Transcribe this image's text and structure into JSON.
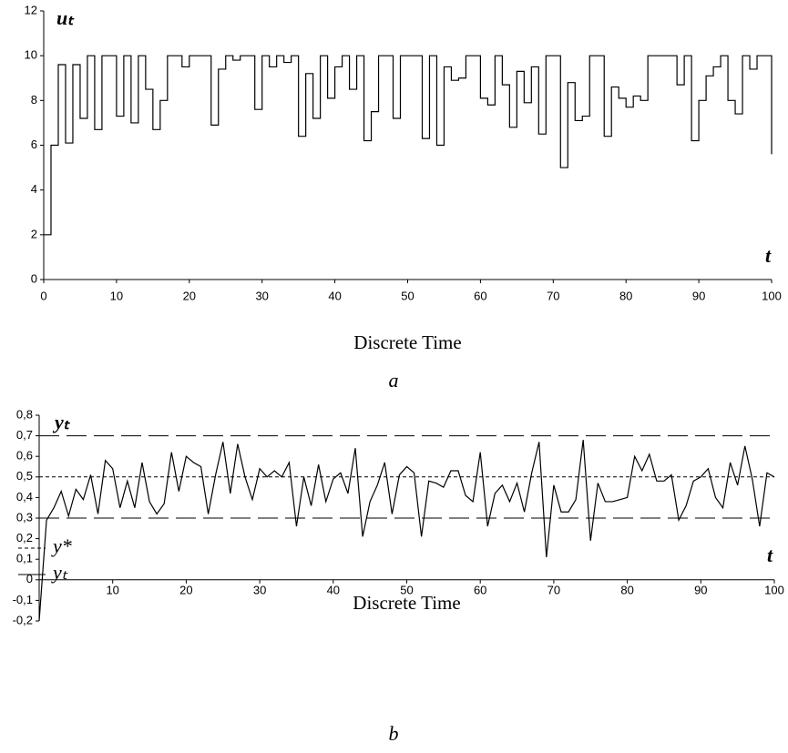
{
  "chart_data": [
    {
      "type": "step",
      "xlabel": "Discrete Time",
      "caption": "a",
      "annotations": {
        "y": "uₜ",
        "x": "t"
      },
      "xlim": [
        0,
        100
      ],
      "xticks": [
        0,
        10,
        20,
        30,
        40,
        50,
        60,
        70,
        80,
        90,
        100
      ],
      "ylim": [
        0,
        12
      ],
      "yticks": [
        0,
        2,
        4,
        6,
        8,
        10,
        12
      ],
      "series": [
        {
          "color": "#000000",
          "x": [
            0,
            1,
            2,
            3,
            4,
            5,
            6,
            7,
            8,
            9,
            10,
            11,
            12,
            13,
            14,
            15,
            16,
            17,
            18,
            19,
            20,
            21,
            22,
            23,
            24,
            25,
            26,
            27,
            28,
            29,
            30,
            31,
            32,
            33,
            34,
            35,
            36,
            37,
            38,
            39,
            40,
            41,
            42,
            43,
            44,
            45,
            46,
            47,
            48,
            49,
            50,
            51,
            52,
            53,
            54,
            55,
            56,
            57,
            58,
            59,
            60,
            61,
            62,
            63,
            64,
            65,
            66,
            67,
            68,
            69,
            70,
            71,
            72,
            73,
            74,
            75,
            76,
            77,
            78,
            79,
            80,
            81,
            82,
            83,
            84,
            85,
            86,
            87,
            88,
            89,
            90,
            91,
            92,
            93,
            94,
            95,
            96,
            97,
            98,
            99,
            100
          ],
          "values": [
            2,
            6,
            9.6,
            6.1,
            9.6,
            7.2,
            10,
            6.7,
            10,
            10,
            7.3,
            10,
            7,
            10,
            8.5,
            6.7,
            8,
            10,
            10,
            9.5,
            10,
            10,
            10,
            6.9,
            9.4,
            10,
            9.8,
            10,
            10,
            7.6,
            10,
            9.5,
            10,
            9.7,
            10,
            6.4,
            9.2,
            7.2,
            10,
            8.1,
            9.5,
            10,
            8.5,
            10,
            6.2,
            7.5,
            10,
            10,
            7.2,
            10,
            10,
            10,
            6.3,
            10,
            6,
            9.5,
            8.9,
            9,
            10,
            10,
            8.1,
            7.8,
            10,
            8.7,
            6.8,
            9.3,
            7.9,
            9.5,
            6.5,
            10,
            10,
            5,
            8.8,
            7.1,
            7.3,
            10,
            10,
            6.4,
            8.6,
            8.1,
            7.7,
            8.2,
            8,
            10,
            10,
            10,
            10,
            8.7,
            10,
            6.2,
            8,
            9.1,
            9.5,
            10,
            8,
            7.4,
            10,
            9.4,
            10,
            10,
            5.6
          ]
        }
      ]
    },
    {
      "type": "line",
      "xlabel": "Discrete Time",
      "caption": "b",
      "annotations": {
        "y": "yₜ",
        "x": "t"
      },
      "xlim": [
        0,
        100
      ],
      "xticks": [
        10,
        20,
        30,
        40,
        50,
        60,
        70,
        80,
        90,
        100
      ],
      "ylim": [
        -0.2,
        0.8
      ],
      "yticks": [
        {
          "value": -0.2,
          "label": "-0,2"
        },
        {
          "value": -0.1,
          "label": "-0,1"
        },
        0,
        {
          "value": 0.1,
          "label": "0,1"
        },
        {
          "value": 0.2,
          "label": "0,2"
        },
        {
          "value": 0.3,
          "label": "0,3"
        },
        {
          "value": 0.4,
          "label": "0,4"
        },
        {
          "value": 0.5,
          "label": "0,5"
        },
        {
          "value": 0.6,
          "label": "0,6"
        },
        {
          "value": 0.7,
          "label": "0,7"
        },
        {
          "value": 0.8,
          "label": "0,8"
        }
      ],
      "legend": "left",
      "reference_lines": [
        {
          "value": 0.3,
          "dash": "long"
        },
        {
          "value": 0.5,
          "dash": "short",
          "name": "y*"
        },
        {
          "value": 0.7,
          "dash": "long"
        }
      ],
      "series": [
        {
          "name": "yₜ",
          "color": "#000000",
          "x": [
            0,
            1,
            2,
            3,
            4,
            5,
            6,
            7,
            8,
            9,
            10,
            11,
            12,
            13,
            14,
            15,
            16,
            17,
            18,
            19,
            20,
            21,
            22,
            23,
            24,
            25,
            26,
            27,
            28,
            29,
            30,
            31,
            32,
            33,
            34,
            35,
            36,
            37,
            38,
            39,
            40,
            41,
            42,
            43,
            44,
            45,
            46,
            47,
            48,
            49,
            50,
            51,
            52,
            53,
            54,
            55,
            56,
            57,
            58,
            59,
            60,
            61,
            62,
            63,
            64,
            65,
            66,
            67,
            68,
            69,
            70,
            71,
            72,
            73,
            74,
            75,
            76,
            77,
            78,
            79,
            80,
            81,
            82,
            83,
            84,
            85,
            86,
            87,
            88,
            89,
            90,
            91,
            92,
            93,
            94,
            95,
            96,
            97,
            98,
            99,
            100
          ],
          "values": [
            -0.2,
            0.29,
            0.35,
            0.43,
            0.31,
            0.44,
            0.39,
            0.51,
            0.32,
            0.58,
            0.54,
            0.35,
            0.48,
            0.35,
            0.57,
            0.38,
            0.32,
            0.37,
            0.62,
            0.43,
            0.6,
            0.57,
            0.55,
            0.32,
            0.51,
            0.67,
            0.42,
            0.66,
            0.5,
            0.39,
            0.54,
            0.5,
            0.53,
            0.5,
            0.57,
            0.26,
            0.5,
            0.36,
            0.56,
            0.38,
            0.49,
            0.52,
            0.42,
            0.64,
            0.21,
            0.38,
            0.46,
            0.57,
            0.32,
            0.51,
            0.55,
            0.52,
            0.21,
            0.48,
            0.47,
            0.45,
            0.53,
            0.53,
            0.41,
            0.38,
            0.62,
            0.26,
            0.42,
            0.46,
            0.38,
            0.47,
            0.33,
            0.52,
            0.67,
            0.11,
            0.46,
            0.33,
            0.33,
            0.39,
            0.68,
            0.19,
            0.47,
            0.38,
            0.38,
            0.39,
            0.4,
            0.6,
            0.53,
            0.61,
            0.48,
            0.48,
            0.51,
            0.29,
            0.36,
            0.48,
            0.5,
            0.54,
            0.4,
            0.35,
            0.57,
            0.46,
            0.65,
            0.49,
            0.26,
            0.52,
            0.5
          ]
        }
      ]
    }
  ]
}
